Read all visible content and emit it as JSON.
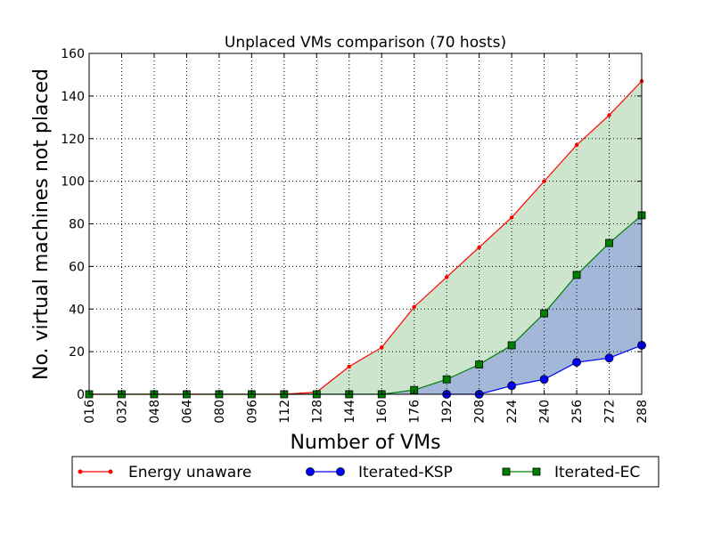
{
  "chart_data": {
    "type": "line",
    "title": "Unplaced VMs comparison (70 hosts)",
    "xlabel": "Number of VMs",
    "ylabel": "No. virtual machines not placed",
    "x": [
      16,
      32,
      48,
      64,
      80,
      96,
      112,
      128,
      144,
      160,
      176,
      192,
      208,
      224,
      240,
      256,
      272,
      288
    ],
    "x_tick_labels": [
      "016",
      "032",
      "048",
      "064",
      "080",
      "096",
      "112",
      "128",
      "144",
      "160",
      "176",
      "192",
      "208",
      "224",
      "240",
      "256",
      "272",
      "288"
    ],
    "xlim": [
      16,
      288
    ],
    "ylim": [
      0,
      160
    ],
    "y_ticks": [
      0,
      20,
      40,
      60,
      80,
      100,
      120,
      140,
      160
    ],
    "grid": true,
    "legend_placement": "below",
    "series": [
      {
        "name": "Energy unaware",
        "color": "#ff0000",
        "marker": "dot",
        "values": [
          0,
          0,
          0,
          0,
          0,
          0,
          0,
          1,
          13,
          22,
          41,
          55,
          69,
          83,
          100,
          117,
          131,
          147
        ]
      },
      {
        "name": "Iterated-KSP",
        "color": "#0000ff",
        "marker": "circle",
        "values": [
          null,
          null,
          null,
          null,
          null,
          null,
          null,
          null,
          null,
          null,
          null,
          0,
          0,
          4,
          7,
          15,
          17,
          23
        ]
      },
      {
        "name": "Iterated-EC",
        "color": "#008000",
        "marker": "square",
        "values": [
          0,
          0,
          0,
          0,
          0,
          0,
          0,
          0,
          0,
          0,
          2,
          7,
          14,
          23,
          38,
          56,
          71,
          84
        ]
      }
    ],
    "fills": [
      {
        "between": [
          "Energy unaware",
          "Iterated-EC"
        ],
        "color": "#cce5cc"
      },
      {
        "between": [
          "Iterated-EC",
          "Iterated-KSP"
        ],
        "color": "#a3b8d9"
      }
    ]
  }
}
